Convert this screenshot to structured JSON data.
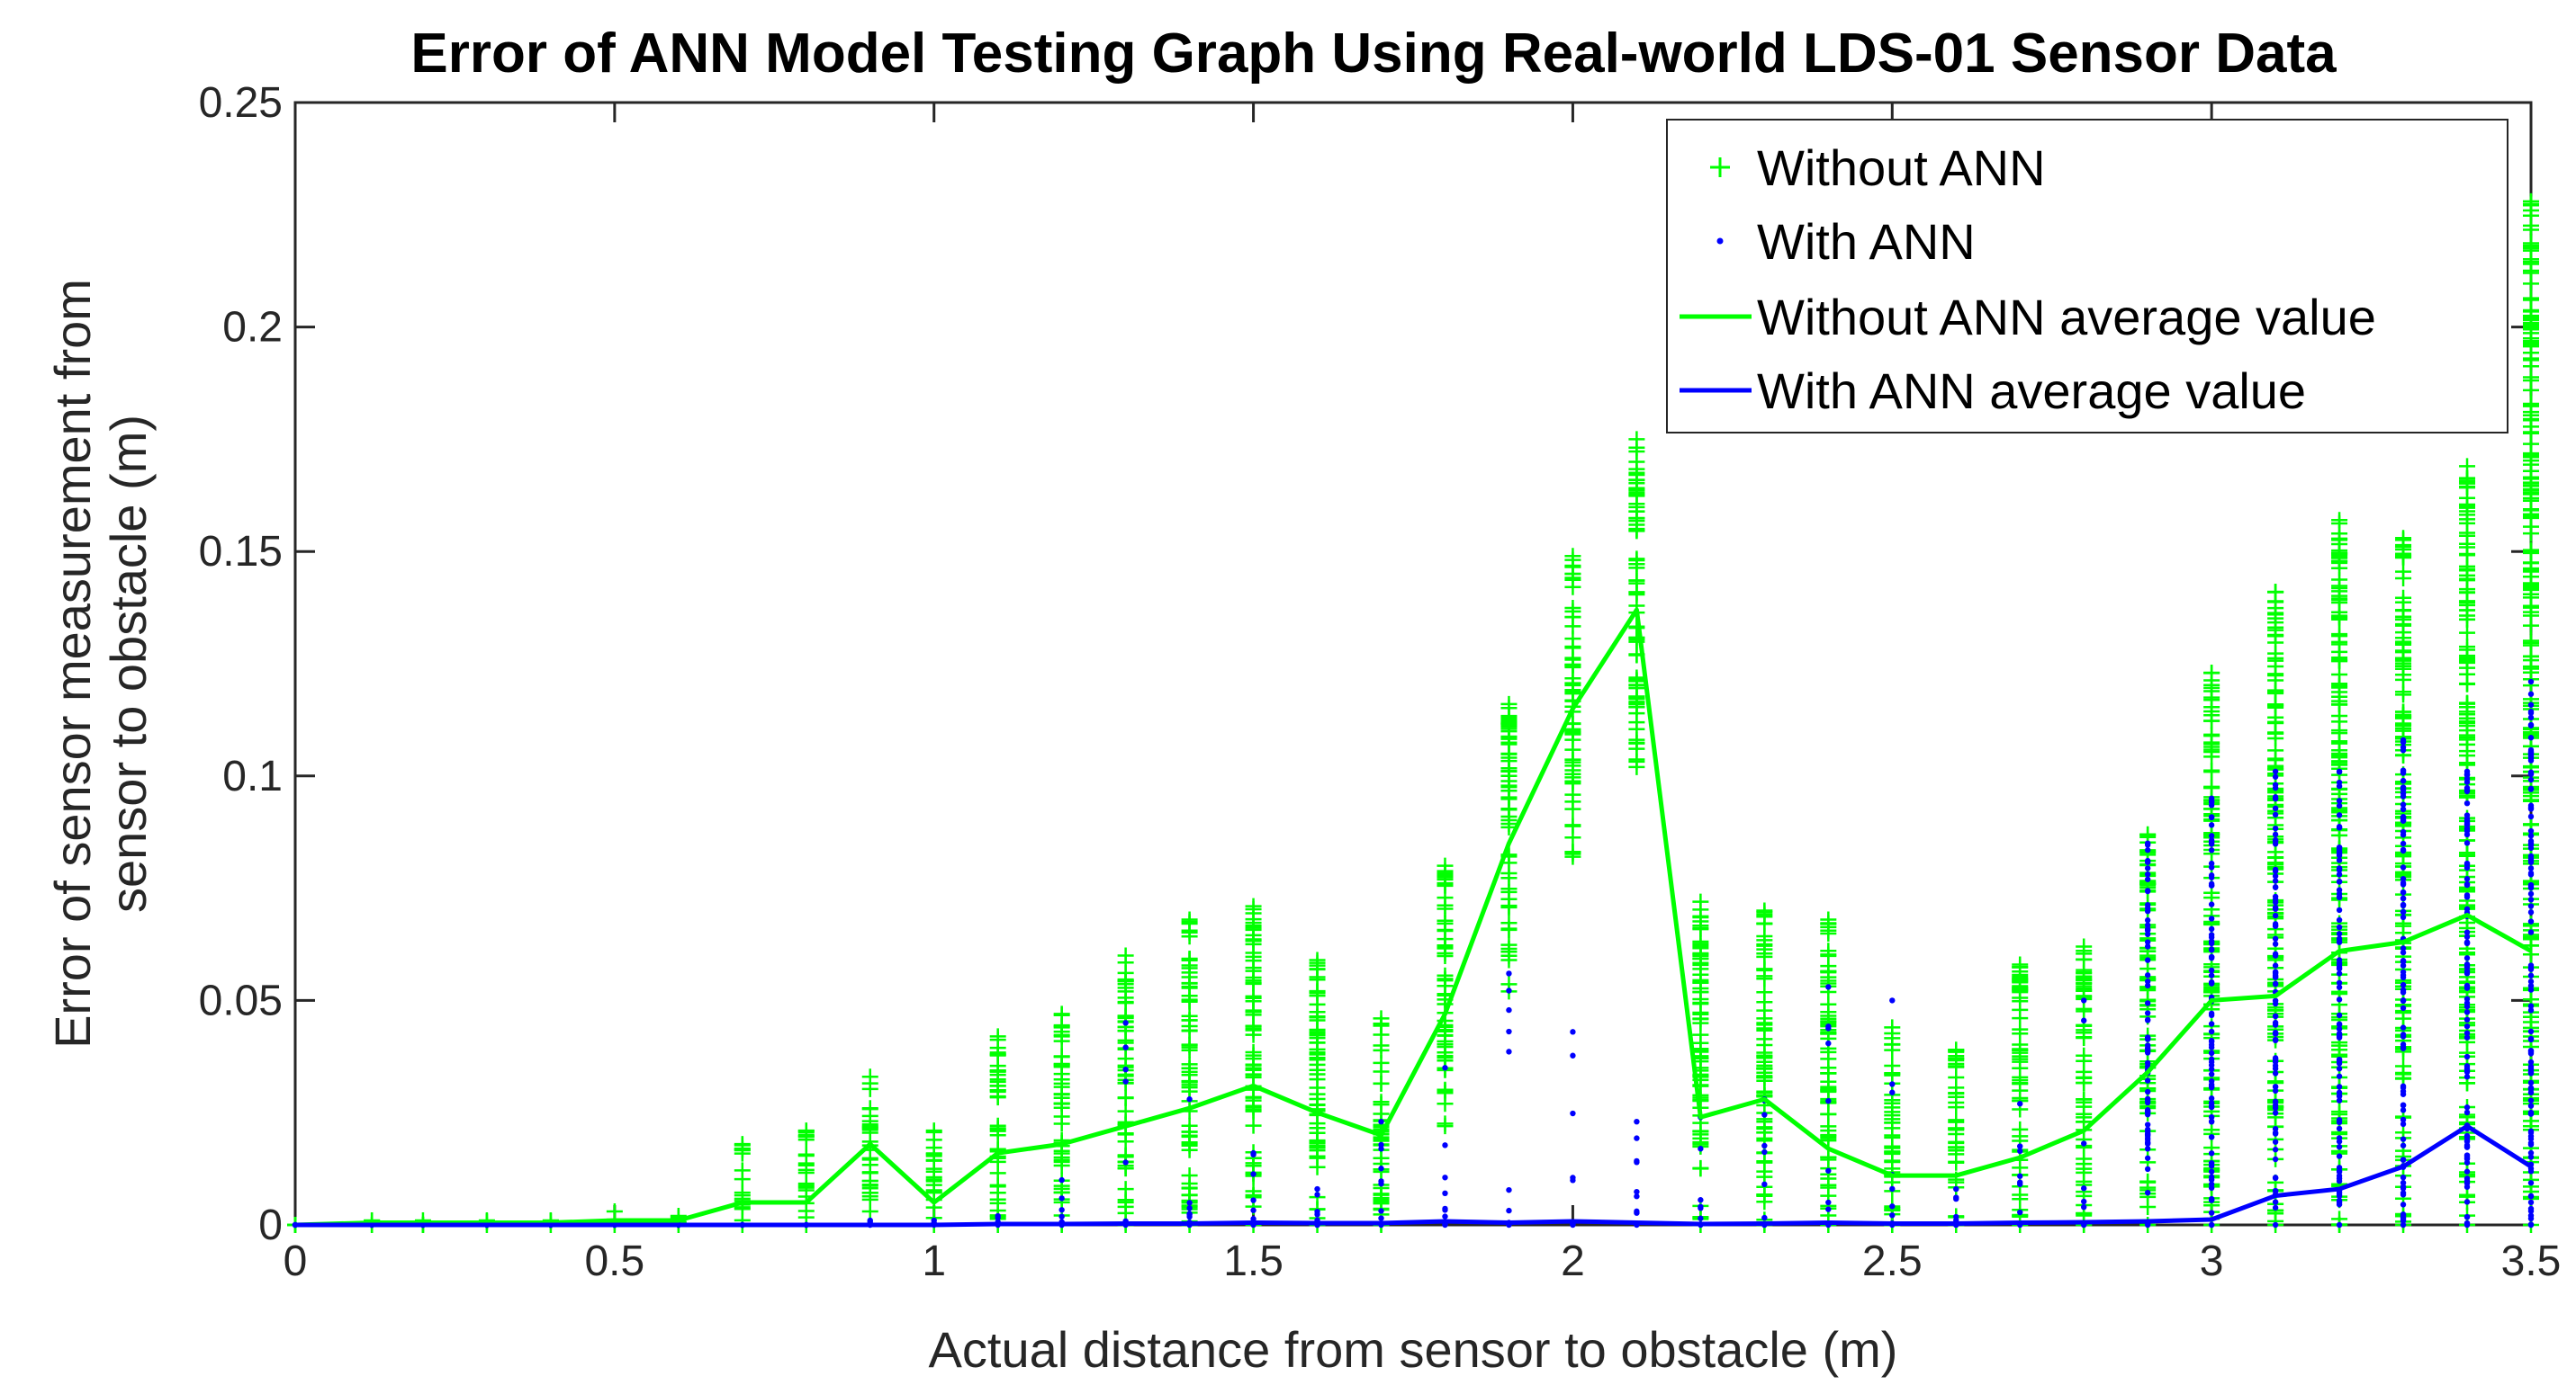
{
  "chart_data": {
    "type": "scatter",
    "title": "Error of ANN Model Testing Graph Using Real-world LDS-01 Sensor Data",
    "xlabel": "Actual distance from sensor to obstacle (m)",
    "ylabel_lines": [
      "Error of sensor measurement from",
      "sensor to obstacle (m)"
    ],
    "xlim": [
      0,
      3.5
    ],
    "ylim": [
      0,
      0.25
    ],
    "xticks": [
      0,
      0.5,
      1,
      1.5,
      2,
      2.5,
      3,
      3.5
    ],
    "xtick_labels": [
      "0",
      "0.5",
      "1",
      "1.5",
      "2",
      "2.5",
      "3",
      "3.5"
    ],
    "yticks": [
      0,
      0.05,
      0.1,
      0.15,
      0.2,
      0.25
    ],
    "ytick_labels": [
      "0",
      "0.05",
      "0.1",
      "0.15",
      "0.2",
      "0.25"
    ],
    "legend_position": "top-right",
    "distances": [
      0,
      0.12,
      0.2,
      0.3,
      0.4,
      0.5,
      0.6,
      0.7,
      0.8,
      0.9,
      1.0,
      1.1,
      1.2,
      1.3,
      1.4,
      1.5,
      1.6,
      1.7,
      1.8,
      1.9,
      2.0,
      2.1,
      2.2,
      2.3,
      2.4,
      2.5,
      2.6,
      2.7,
      2.8,
      2.9,
      3.0,
      3.1,
      3.2,
      3.3,
      3.4,
      3.5
    ],
    "series": [
      {
        "name": "Without ANN",
        "kind": "scatter",
        "marker": "+",
        "color": "#00ff00",
        "error_min": [
          0,
          0,
          0,
          0,
          0,
          0,
          0,
          0,
          0,
          0.003,
          0,
          0,
          0,
          0,
          0,
          0,
          0,
          0,
          0.022,
          0.052,
          0.082,
          0.102,
          0,
          0,
          0,
          0,
          0,
          0,
          0,
          0,
          0,
          0,
          0,
          0,
          0,
          0
        ],
        "error_max": [
          0,
          0.001,
          0.001,
          0.001,
          0.001,
          0.003,
          0.002,
          0.018,
          0.021,
          0.033,
          0.021,
          0.042,
          0.047,
          0.06,
          0.068,
          0.071,
          0.059,
          0.046,
          0.08,
          0.116,
          0.149,
          0.175,
          0.072,
          0.07,
          0.068,
          0.044,
          0.039,
          0.058,
          0.062,
          0.087,
          0.123,
          0.141,
          0.157,
          0.153,
          0.169,
          0.228
        ]
      },
      {
        "name": "With ANN",
        "kind": "scatter",
        "marker": ".",
        "color": "#0000ff",
        "error_max": [
          0,
          0,
          0,
          0,
          0,
          0,
          0,
          0,
          0,
          0.001,
          0.001,
          0.002,
          0.01,
          0.045,
          0.028,
          0.016,
          0.008,
          0.023,
          0.035,
          0.056,
          0.043,
          0.023,
          0.024,
          0.028,
          0.053,
          0.05,
          0.008,
          0.027,
          0.05,
          0.085,
          0.095,
          0.101,
          0.101,
          0.108,
          0.101,
          0.121
        ]
      },
      {
        "name": "Without ANN average value",
        "kind": "line",
        "color": "#00ff00",
        "values": [
          0,
          0.0005,
          0.0005,
          0.0005,
          0.0005,
          0.001,
          0.001,
          0.005,
          0.005,
          0.018,
          0.005,
          0.016,
          0.018,
          0.022,
          0.026,
          0.031,
          0.025,
          0.02,
          0.047,
          0.085,
          0.115,
          0.137,
          0.024,
          0.028,
          0.017,
          0.011,
          0.011,
          0.015,
          0.021,
          0.034,
          0.05,
          0.051,
          0.061,
          0.063,
          0.069,
          0.061
        ]
      },
      {
        "name": "With ANN average value",
        "kind": "line",
        "color": "#0000ff",
        "values": [
          0,
          0,
          0,
          0,
          0,
          0,
          0,
          0,
          0,
          0,
          0,
          0.0002,
          0.0002,
          0.0003,
          0.0003,
          0.0005,
          0.0004,
          0.0004,
          0.0008,
          0.0005,
          0.0008,
          0.0005,
          0.0002,
          0.0003,
          0.0005,
          0.0003,
          0.0003,
          0.0005,
          0.0006,
          0.0008,
          0.0012,
          0.0065,
          0.008,
          0.013,
          0.022,
          0.013
        ]
      }
    ]
  }
}
